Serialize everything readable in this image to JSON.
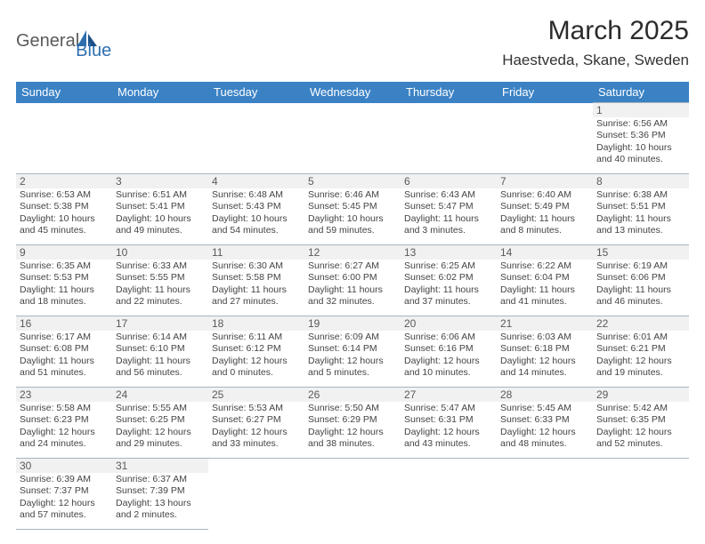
{
  "logo": {
    "text1": "General",
    "text2": "Blue",
    "accent": "#2f6fb0"
  },
  "header": {
    "month_title": "March 2025",
    "location": "Haestveda, Skane, Sweden"
  },
  "colors": {
    "header_bg": "#3b82c4",
    "header_fg": "#ffffff",
    "cell_border": "#a8b4c0",
    "daynum_bg": "#f1f1f1",
    "text": "#444444"
  },
  "weekdays": [
    "Sunday",
    "Monday",
    "Tuesday",
    "Wednesday",
    "Thursday",
    "Friday",
    "Saturday"
  ],
  "weeks": [
    [
      null,
      null,
      null,
      null,
      null,
      null,
      {
        "n": "1",
        "sr": "Sunrise: 6:56 AM",
        "ss": "Sunset: 5:36 PM",
        "d1": "Daylight: 10 hours",
        "d2": "and 40 minutes."
      }
    ],
    [
      {
        "n": "2",
        "sr": "Sunrise: 6:53 AM",
        "ss": "Sunset: 5:38 PM",
        "d1": "Daylight: 10 hours",
        "d2": "and 45 minutes."
      },
      {
        "n": "3",
        "sr": "Sunrise: 6:51 AM",
        "ss": "Sunset: 5:41 PM",
        "d1": "Daylight: 10 hours",
        "d2": "and 49 minutes."
      },
      {
        "n": "4",
        "sr": "Sunrise: 6:48 AM",
        "ss": "Sunset: 5:43 PM",
        "d1": "Daylight: 10 hours",
        "d2": "and 54 minutes."
      },
      {
        "n": "5",
        "sr": "Sunrise: 6:46 AM",
        "ss": "Sunset: 5:45 PM",
        "d1": "Daylight: 10 hours",
        "d2": "and 59 minutes."
      },
      {
        "n": "6",
        "sr": "Sunrise: 6:43 AM",
        "ss": "Sunset: 5:47 PM",
        "d1": "Daylight: 11 hours",
        "d2": "and 3 minutes."
      },
      {
        "n": "7",
        "sr": "Sunrise: 6:40 AM",
        "ss": "Sunset: 5:49 PM",
        "d1": "Daylight: 11 hours",
        "d2": "and 8 minutes."
      },
      {
        "n": "8",
        "sr": "Sunrise: 6:38 AM",
        "ss": "Sunset: 5:51 PM",
        "d1": "Daylight: 11 hours",
        "d2": "and 13 minutes."
      }
    ],
    [
      {
        "n": "9",
        "sr": "Sunrise: 6:35 AM",
        "ss": "Sunset: 5:53 PM",
        "d1": "Daylight: 11 hours",
        "d2": "and 18 minutes."
      },
      {
        "n": "10",
        "sr": "Sunrise: 6:33 AM",
        "ss": "Sunset: 5:55 PM",
        "d1": "Daylight: 11 hours",
        "d2": "and 22 minutes."
      },
      {
        "n": "11",
        "sr": "Sunrise: 6:30 AM",
        "ss": "Sunset: 5:58 PM",
        "d1": "Daylight: 11 hours",
        "d2": "and 27 minutes."
      },
      {
        "n": "12",
        "sr": "Sunrise: 6:27 AM",
        "ss": "Sunset: 6:00 PM",
        "d1": "Daylight: 11 hours",
        "d2": "and 32 minutes."
      },
      {
        "n": "13",
        "sr": "Sunrise: 6:25 AM",
        "ss": "Sunset: 6:02 PM",
        "d1": "Daylight: 11 hours",
        "d2": "and 37 minutes."
      },
      {
        "n": "14",
        "sr": "Sunrise: 6:22 AM",
        "ss": "Sunset: 6:04 PM",
        "d1": "Daylight: 11 hours",
        "d2": "and 41 minutes."
      },
      {
        "n": "15",
        "sr": "Sunrise: 6:19 AM",
        "ss": "Sunset: 6:06 PM",
        "d1": "Daylight: 11 hours",
        "d2": "and 46 minutes."
      }
    ],
    [
      {
        "n": "16",
        "sr": "Sunrise: 6:17 AM",
        "ss": "Sunset: 6:08 PM",
        "d1": "Daylight: 11 hours",
        "d2": "and 51 minutes."
      },
      {
        "n": "17",
        "sr": "Sunrise: 6:14 AM",
        "ss": "Sunset: 6:10 PM",
        "d1": "Daylight: 11 hours",
        "d2": "and 56 minutes."
      },
      {
        "n": "18",
        "sr": "Sunrise: 6:11 AM",
        "ss": "Sunset: 6:12 PM",
        "d1": "Daylight: 12 hours",
        "d2": "and 0 minutes."
      },
      {
        "n": "19",
        "sr": "Sunrise: 6:09 AM",
        "ss": "Sunset: 6:14 PM",
        "d1": "Daylight: 12 hours",
        "d2": "and 5 minutes."
      },
      {
        "n": "20",
        "sr": "Sunrise: 6:06 AM",
        "ss": "Sunset: 6:16 PM",
        "d1": "Daylight: 12 hours",
        "d2": "and 10 minutes."
      },
      {
        "n": "21",
        "sr": "Sunrise: 6:03 AM",
        "ss": "Sunset: 6:18 PM",
        "d1": "Daylight: 12 hours",
        "d2": "and 14 minutes."
      },
      {
        "n": "22",
        "sr": "Sunrise: 6:01 AM",
        "ss": "Sunset: 6:21 PM",
        "d1": "Daylight: 12 hours",
        "d2": "and 19 minutes."
      }
    ],
    [
      {
        "n": "23",
        "sr": "Sunrise: 5:58 AM",
        "ss": "Sunset: 6:23 PM",
        "d1": "Daylight: 12 hours",
        "d2": "and 24 minutes."
      },
      {
        "n": "24",
        "sr": "Sunrise: 5:55 AM",
        "ss": "Sunset: 6:25 PM",
        "d1": "Daylight: 12 hours",
        "d2": "and 29 minutes."
      },
      {
        "n": "25",
        "sr": "Sunrise: 5:53 AM",
        "ss": "Sunset: 6:27 PM",
        "d1": "Daylight: 12 hours",
        "d2": "and 33 minutes."
      },
      {
        "n": "26",
        "sr": "Sunrise: 5:50 AM",
        "ss": "Sunset: 6:29 PM",
        "d1": "Daylight: 12 hours",
        "d2": "and 38 minutes."
      },
      {
        "n": "27",
        "sr": "Sunrise: 5:47 AM",
        "ss": "Sunset: 6:31 PM",
        "d1": "Daylight: 12 hours",
        "d2": "and 43 minutes."
      },
      {
        "n": "28",
        "sr": "Sunrise: 5:45 AM",
        "ss": "Sunset: 6:33 PM",
        "d1": "Daylight: 12 hours",
        "d2": "and 48 minutes."
      },
      {
        "n": "29",
        "sr": "Sunrise: 5:42 AM",
        "ss": "Sunset: 6:35 PM",
        "d1": "Daylight: 12 hours",
        "d2": "and 52 minutes."
      }
    ],
    [
      {
        "n": "30",
        "sr": "Sunrise: 6:39 AM",
        "ss": "Sunset: 7:37 PM",
        "d1": "Daylight: 12 hours",
        "d2": "and 57 minutes."
      },
      {
        "n": "31",
        "sr": "Sunrise: 6:37 AM",
        "ss": "Sunset: 7:39 PM",
        "d1": "Daylight: 13 hours",
        "d2": "and 2 minutes."
      },
      null,
      null,
      null,
      null,
      null
    ]
  ]
}
